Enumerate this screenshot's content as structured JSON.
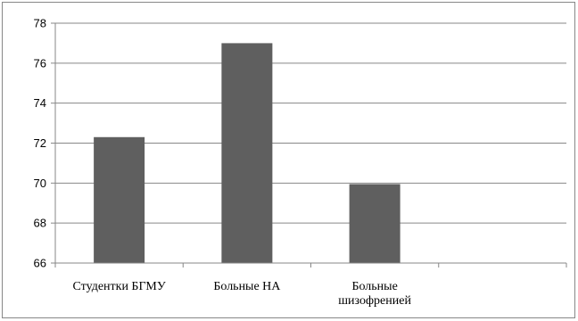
{
  "chart_data": {
    "type": "bar",
    "categories": [
      "Студентки БГМУ",
      "Больные НА",
      "Больные шизофренией",
      ""
    ],
    "category_label_lines": [
      [
        "Студентки БГМУ"
      ],
      [
        "Больные НА"
      ],
      [
        "Больные",
        "шизофренией"
      ],
      []
    ],
    "values": [
      72.3,
      77.0,
      69.95,
      null
    ],
    "ylim": [
      66,
      78
    ],
    "yticks": [
      66,
      68,
      70,
      72,
      74,
      76,
      78
    ],
    "grid": true,
    "legend": "none",
    "title": "",
    "xlabel": "",
    "ylabel": "",
    "colors": {
      "bar": "#5f5f5f",
      "grid": "#878787",
      "axis": "#878787",
      "frame": "#878787"
    }
  }
}
